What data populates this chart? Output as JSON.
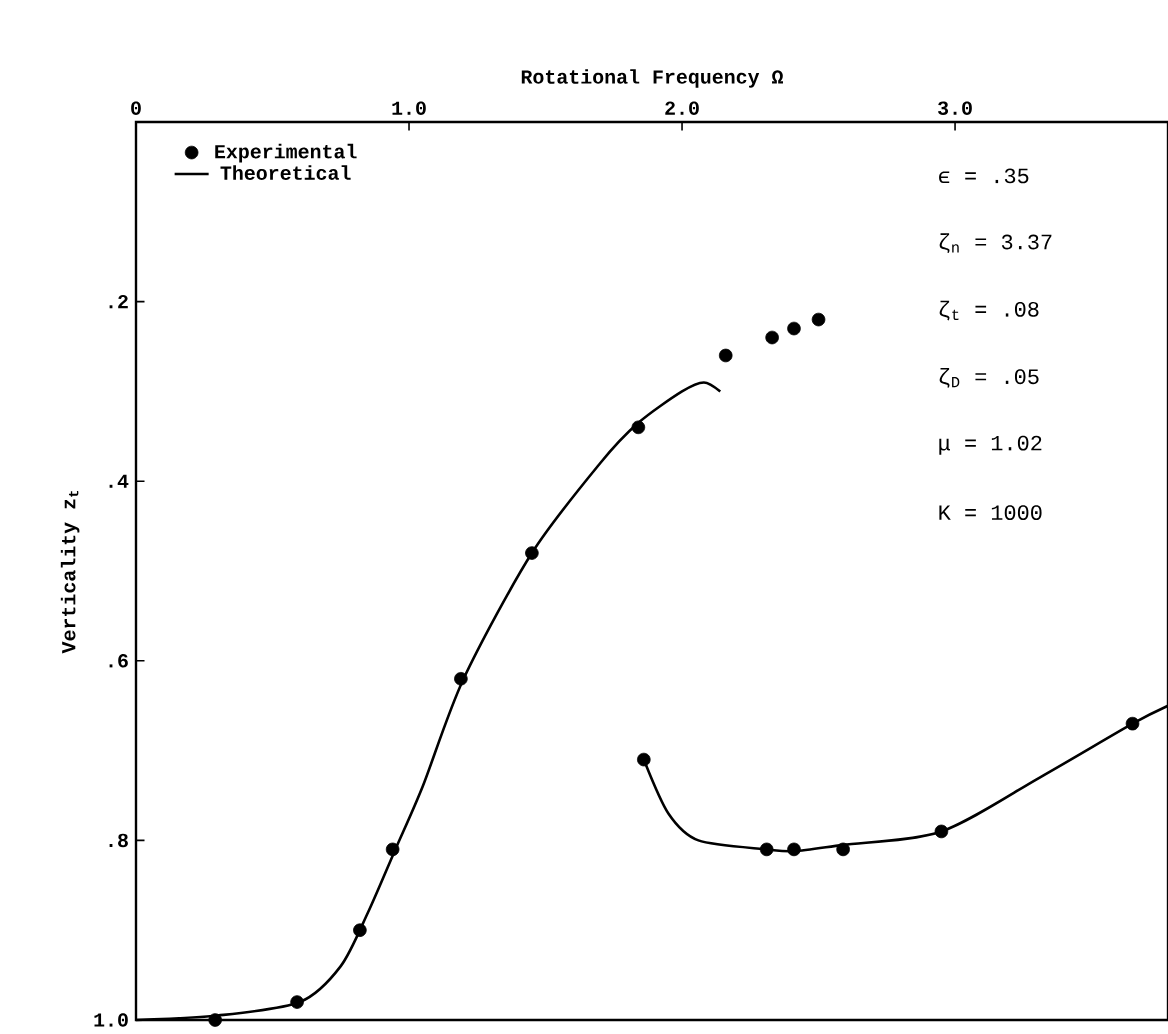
{
  "chart_data": {
    "type": "line",
    "xlabel": "Rotational Frequency Ω",
    "ylabel": "Verticality z$_{t}$",
    "xlim": [
      0,
      3.78
    ],
    "ylim": [
      1.0,
      0
    ],
    "xticks": [
      0,
      {
        "value": 1,
        "label": "1.0"
      },
      {
        "value": 2,
        "label": "2.0"
      },
      {
        "value": 3,
        "label": "3.0"
      }
    ],
    "yticks": [
      {
        "value": 0.2,
        "label": ".2"
      },
      {
        "value": 0.4,
        "label": ".4"
      },
      {
        "value": 0.6,
        "label": ".6"
      },
      {
        "value": 0.8,
        "label": ".8"
      },
      {
        "value": 1.0,
        "label": "1.0"
      }
    ],
    "grid": false,
    "legend": "top left",
    "line_style": "solid",
    "series": [
      {
        "name": "Experimental",
        "type": "scatter",
        "marker": "circle",
        "color": "#000000",
        "x": [
          0.29,
          0.59,
          0.82,
          0.94,
          1.19,
          1.45,
          1.84,
          2.16,
          2.33,
          2.41,
          2.5,
          1.86,
          2.31,
          2.41,
          2.59,
          2.95,
          3.65
        ],
        "values": [
          1.0,
          0.98,
          0.9,
          0.81,
          0.62,
          0.48,
          0.34,
          0.26,
          0.24,
          0.23,
          0.22,
          0.71,
          0.81,
          0.81,
          0.81,
          0.79,
          0.67
        ]
      },
      {
        "name": "Theoretical",
        "marker": "none",
        "color": "#000000",
        "x": [
          0,
          0.3,
          0.6,
          0.75,
          0.85,
          0.95,
          1.05,
          1.2,
          1.45,
          1.7,
          1.84,
          2.0,
          2.08,
          2.14
        ],
        "values": [
          1.0,
          0.995,
          0.98,
          0.94,
          0.88,
          0.81,
          0.74,
          0.62,
          0.48,
          0.38,
          0.335,
          0.3,
          0.29,
          0.3
        ]
      },
      {
        "marker": "none",
        "color": "#000000",
        "x": [
          1.86,
          1.95,
          2.06,
          2.31,
          2.41,
          2.59,
          2.95,
          3.31,
          3.65,
          3.78
        ],
        "values": [
          0.71,
          0.77,
          0.8,
          0.81,
          0.812,
          0.805,
          0.79,
          0.73,
          0.67,
          0.65
        ]
      }
    ],
    "annotations": [
      "ϵ = .35",
      "ζ$_{n}$ = 3.37",
      "ζ$_{t}$ = .08",
      "ζ$_{D}$ = .05",
      "μ = 1.02",
      "K = 1000"
    ]
  }
}
